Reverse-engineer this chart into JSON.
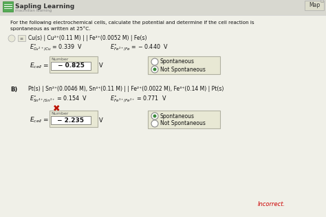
{
  "bg_color": "#f0f0e8",
  "header_bg": "#d8d8d0",
  "header_text": "Sapling Learning",
  "header_sub": "macmillan learning",
  "header_icon_color": "#5aaa5a",
  "map_btn": "Map",
  "intro_line1": "For the following electrochemical cells, calculate the potential and determine if the cell reaction is",
  "intro_line2": "spontaneous as written at 25°C.",
  "section_A_cell": "Cu(s) | Cu²⁺(0.11 M) | | Fe²⁺(0.0052 M) | Fe(s)",
  "section_A_Ecell_val": "− 0.825",
  "section_A_radio_selected": 2,
  "section_B_cell": "Pt(s) | Sn²⁺(0.0046 M), Sn⁴⁺(0.11 M) | | Fe²⁺(0.0022 M), Fe³⁺(0.14 M) | Pt(s)",
  "section_B_Ecell_val": "− 2.235",
  "section_B_radio_selected": 1,
  "radio1": "Spontaneous",
  "radio2": "Not Spontaneous",
  "incorrect_text": "Incorrect.",
  "incorrect_color": "#cc0000",
  "box_bg": "#e8e8d4",
  "box_border": "#b0b0a0",
  "answer_box_bg": "#ffffff",
  "answer_box_border": "#888880",
  "radio_green": "#3a8a3a",
  "x_mark_color": "#bb1100"
}
